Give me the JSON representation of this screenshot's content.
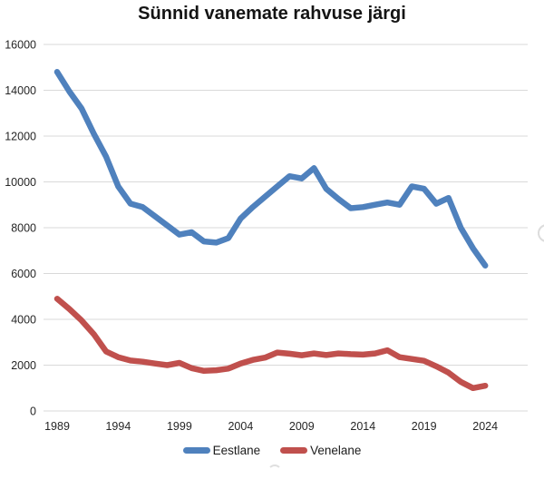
{
  "chart": {
    "title": "Sünnid vanemate rahvuse järgi"
  },
  "chart_data": {
    "type": "line",
    "title": "Sünnid vanemate rahvuse järgi",
    "xlabel": "",
    "ylabel": "",
    "x": [
      1989,
      1990,
      1991,
      1992,
      1993,
      1994,
      1995,
      1996,
      1997,
      1998,
      1999,
      2000,
      2001,
      2002,
      2003,
      2004,
      2005,
      2006,
      2007,
      2008,
      2009,
      2010,
      2011,
      2012,
      2013,
      2014,
      2015,
      2016,
      2017,
      2018,
      2019,
      2020,
      2021,
      2022,
      2023,
      2024
    ],
    "series": [
      {
        "name": "Eestlane",
        "color": "#4F81BD",
        "values": [
          14800,
          13950,
          13200,
          12100,
          11100,
          9800,
          9050,
          8900,
          8500,
          8100,
          7700,
          7800,
          7400,
          7350,
          7550,
          8400,
          8900,
          9350,
          9800,
          10250,
          10150,
          10600,
          9700,
          9250,
          8850,
          8900,
          9000,
          9100,
          9000,
          9800,
          9700,
          9050,
          9300,
          8000,
          7100,
          6350
        ]
      },
      {
        "name": "Venelane",
        "color": "#C0504D",
        "values": [
          4900,
          4450,
          3950,
          3350,
          2600,
          2350,
          2200,
          2150,
          2070,
          2000,
          2100,
          1870,
          1750,
          1780,
          1850,
          2070,
          2230,
          2330,
          2550,
          2500,
          2430,
          2510,
          2440,
          2510,
          2480,
          2460,
          2510,
          2650,
          2350,
          2270,
          2190,
          1950,
          1670,
          1270,
          1000,
          1100
        ]
      }
    ],
    "ylim": [
      0,
      16000
    ],
    "y_ticks": [
      0,
      2000,
      4000,
      6000,
      8000,
      10000,
      12000,
      14000,
      16000
    ],
    "x_ticks": [
      1989,
      1994,
      1999,
      2004,
      2009,
      2014,
      2019,
      2024
    ],
    "grid": "horizontal",
    "legend_position": "bottom"
  },
  "colors": {
    "gridline": "#D9D9D9",
    "tick_text": "#262626",
    "title_text": "#141414",
    "background": "#FFFFFF"
  }
}
